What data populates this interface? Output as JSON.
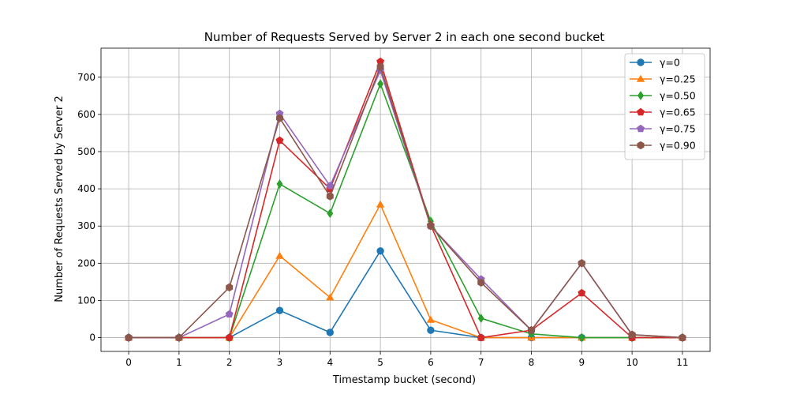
{
  "chart_data": {
    "type": "line",
    "title": "Number of Requests Served by Server 2 in each one second bucket",
    "xlabel": "Timestamp bucket (second)",
    "ylabel": "Number of Requests Served by Server 2",
    "x": [
      0,
      1,
      2,
      3,
      4,
      5,
      6,
      7,
      8,
      9,
      10,
      11
    ],
    "xlim": [
      -0.55,
      11.55
    ],
    "ylim": [
      -37,
      778
    ],
    "yticks": [
      0,
      100,
      200,
      300,
      400,
      500,
      600,
      700
    ],
    "grid": true,
    "legend_position": "top-right",
    "series": [
      {
        "name": "γ=0",
        "color": "#1f77b4",
        "marker": "circle",
        "values": [
          0,
          0,
          0,
          73,
          14,
          233,
          20,
          0,
          0,
          0,
          0,
          0
        ]
      },
      {
        "name": "γ=0.25",
        "color": "#ff7f0e",
        "marker": "triangle",
        "values": [
          0,
          0,
          0,
          220,
          108,
          358,
          48,
          0,
          0,
          0,
          0,
          0
        ]
      },
      {
        "name": "γ=0.50",
        "color": "#2ca02c",
        "marker": "diamond",
        "values": [
          0,
          0,
          0,
          413,
          334,
          682,
          313,
          52,
          10,
          0,
          0,
          0
        ]
      },
      {
        "name": "γ=0.65",
        "color": "#d62728",
        "marker": "pentagon",
        "values": [
          0,
          0,
          0,
          530,
          400,
          742,
          302,
          0,
          20,
          120,
          0,
          0
        ]
      },
      {
        "name": "γ=0.75",
        "color": "#9467bd",
        "marker": "pentagon",
        "values": [
          0,
          0,
          63,
          602,
          408,
          718,
          300,
          157,
          20,
          200,
          8,
          0
        ]
      },
      {
        "name": "γ=0.90",
        "color": "#8c564b",
        "marker": "hexagon",
        "values": [
          0,
          0,
          135,
          590,
          380,
          728,
          300,
          148,
          20,
          200,
          8,
          0
        ]
      }
    ]
  }
}
